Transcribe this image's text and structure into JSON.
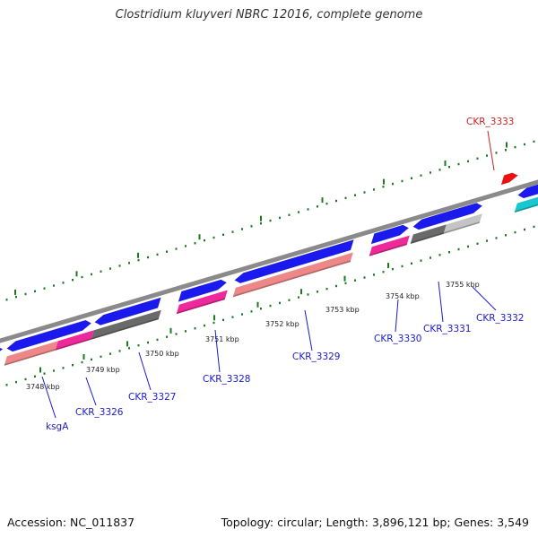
{
  "title": "Clostridium kluyveri NBRC 12016, complete genome",
  "footer": {
    "accession": "Accession: NC_011837",
    "summary": "Topology: circular; Length: 3,896,121 bp; Genes: 3,549"
  },
  "colors": {
    "backbone": "#8a8a8a",
    "tick": "#1e7a1e",
    "gene_blue": "#1a1aee",
    "rna_pink": "#ee2a9a",
    "rna_salmon": "#ee8888",
    "rna_gray": "#6a6a6a",
    "rna_lightgray": "#c4c4c4",
    "gene_cyan": "#18c8d0",
    "gene_red": "#ee1010",
    "label_blue": "#1a1acc",
    "label_red": "#cc2222"
  },
  "position_labels": [
    "3748 kbp",
    "3749 kbp",
    "3750 kbp",
    "3751 kbp",
    "3752 kbp",
    "3753 kbp",
    "3754 kbp",
    "3755 kbp"
  ],
  "gene_labels": [
    {
      "text": "ksgA",
      "color": "label_blue"
    },
    {
      "text": "CKR_3326",
      "color": "label_blue"
    },
    {
      "text": "CKR_3327",
      "color": "label_blue"
    },
    {
      "text": "CKR_3328",
      "color": "label_blue"
    },
    {
      "text": "CKR_3329",
      "color": "label_blue"
    },
    {
      "text": "CKR_3330",
      "color": "label_blue"
    },
    {
      "text": "CKR_3331",
      "color": "label_blue"
    },
    {
      "text": "CKR_3332",
      "color": "label_blue"
    },
    {
      "text": "CKR_3333",
      "color": "label_red"
    }
  ]
}
